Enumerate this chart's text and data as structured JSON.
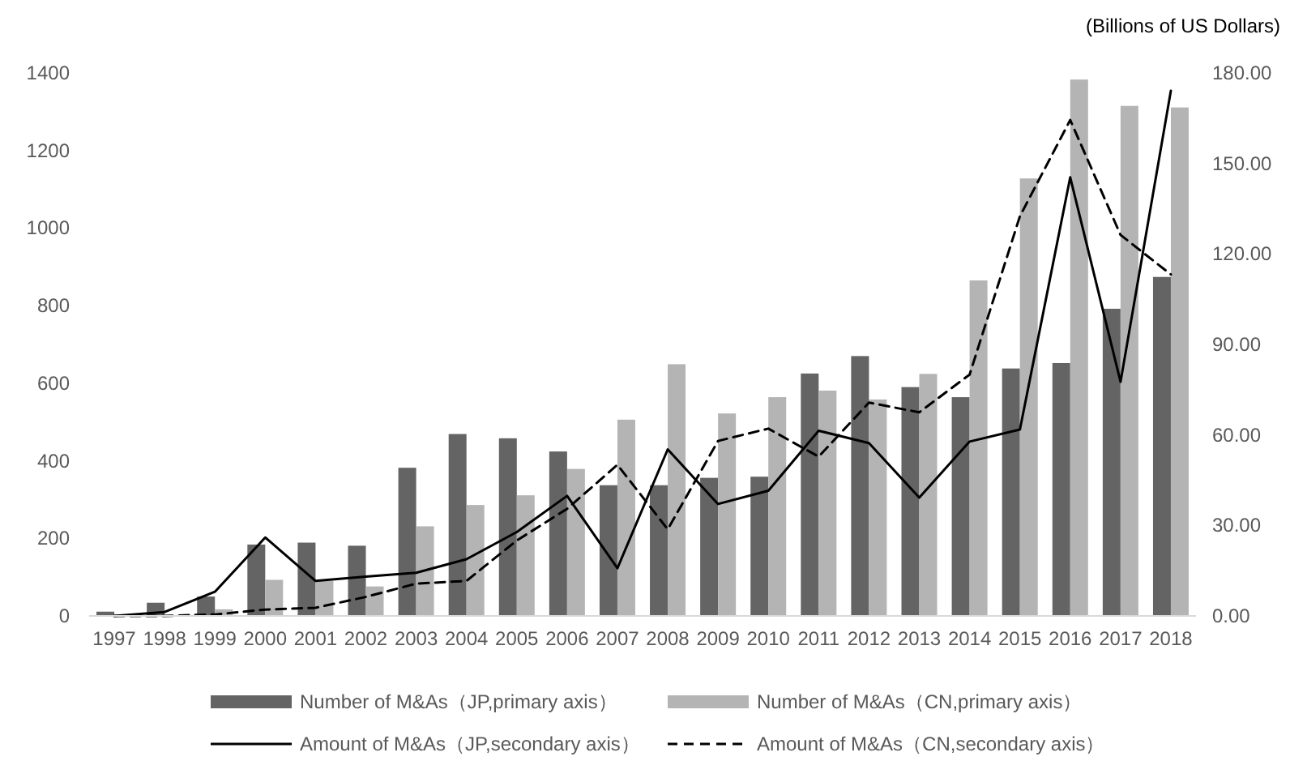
{
  "chart_data": {
    "type": "bar",
    "y2label": "(Billions of US Dollars)",
    "categories": [
      "1997",
      "1998",
      "1999",
      "2000",
      "2001",
      "2002",
      "2003",
      "2004",
      "2005",
      "2006",
      "2007",
      "2008",
      "2009",
      "2010",
      "2011",
      "2012",
      "2013",
      "2014",
      "2015",
      "2016",
      "2017",
      "2018"
    ],
    "series": [
      {
        "name": "Number of M&As（JP,primary axis）",
        "color": "#646464",
        "values": [
          11,
          34,
          50,
          184,
          189,
          181,
          382,
          469,
          458,
          424,
          337,
          337,
          356,
          359,
          625,
          670,
          590,
          564,
          638,
          652,
          792,
          874
        ]
      },
      {
        "name": "Number of M&As（CN,primary axis）",
        "color": "#b4b4b4",
        "values": [
          2,
          2,
          17,
          93,
          90,
          76,
          231,
          286,
          311,
          379,
          506,
          649,
          522,
          564,
          581,
          558,
          624,
          865,
          1128,
          1383,
          1315,
          1311
        ]
      },
      {
        "name": "Amount of M&As（JP,secondary axis）",
        "type": "line",
        "axis": "y2",
        "line_style": "solid",
        "color": "#000000",
        "values": [
          0,
          1.3,
          8,
          26,
          11.6,
          13,
          14.3,
          18.8,
          27.8,
          39.8,
          15.8,
          55.2,
          37.1,
          41.5,
          61.4,
          57.3,
          39.2,
          57.8,
          61.8,
          145.4,
          77.6,
          174.1
        ]
      },
      {
        "name": "Amount of M&As（CN,secondary axis）",
        "type": "line",
        "axis": "y2",
        "line_style": "dashed",
        "color": "#000000",
        "values": [
          0,
          0,
          0.5,
          2.1,
          2.7,
          6.3,
          10.7,
          11.6,
          25,
          35.5,
          50.1,
          28.7,
          58,
          62.1,
          52.8,
          70.7,
          67.5,
          80,
          132.5,
          164.4,
          126.3,
          113.2
        ]
      }
    ],
    "ylim": [
      0,
      1400
    ],
    "yticks": [
      0,
      200,
      400,
      600,
      800,
      1000,
      1200,
      1400
    ],
    "y2lim": [
      0,
      180
    ],
    "y2ticks": [
      {
        "value": 0,
        "label": "0.00"
      },
      {
        "value": 30,
        "label": "30.00"
      },
      {
        "value": 60,
        "label": "60.00"
      },
      {
        "value": 90,
        "label": "90.00"
      },
      {
        "value": 120,
        "label": "120.00"
      },
      {
        "value": 150,
        "label": "150.00"
      },
      {
        "value": 180,
        "label": "180.00"
      }
    ],
    "legend": "bottom"
  }
}
